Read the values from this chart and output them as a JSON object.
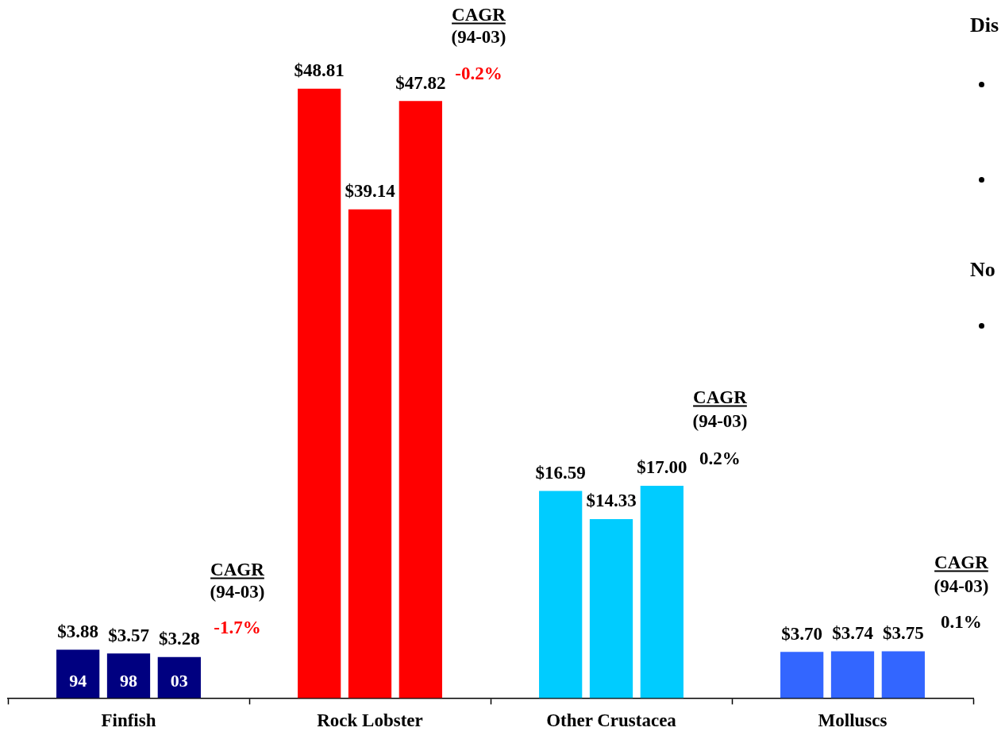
{
  "chart_data": {
    "type": "bar",
    "categories": [
      "Finfish",
      "Rock Lobster",
      "Other Crustacea",
      "Molluscs"
    ],
    "series": [
      {
        "name": "94",
        "colors": [
          "#000080",
          "#ff0000",
          "#00ccff",
          "#3366ff"
        ],
        "values": [
          3.88,
          48.81,
          16.59,
          3.7
        ],
        "value_labels": [
          "$3.88",
          "$48.81",
          "$16.59",
          "$3.70"
        ]
      },
      {
        "name": "98",
        "colors": [
          "#000080",
          "#ff0000",
          "#00ccff",
          "#3366ff"
        ],
        "values": [
          3.57,
          39.14,
          14.33,
          3.74
        ],
        "value_labels": [
          "$3.57",
          "$39.14",
          "$14.33",
          "$3.74"
        ]
      },
      {
        "name": "03",
        "colors": [
          "#000080",
          "#ff0000",
          "#00ccff",
          "#3366ff"
        ],
        "values": [
          3.28,
          47.82,
          17.0,
          3.75
        ],
        "value_labels": [
          "$3.28",
          "$47.82",
          "$17.00",
          "$3.75"
        ]
      }
    ],
    "grid": false,
    "legend": false,
    "tick_labels": "x",
    "annotations": [
      "CAGR",
      "(94-03)",
      "-1.7%",
      "CAGR",
      "(94-03)",
      "-0.2%",
      "CAGR",
      "(94-03)",
      "0.2%",
      "CAGR",
      "(94-03)",
      "0.1%",
      "Dis",
      "No"
    ]
  }
}
